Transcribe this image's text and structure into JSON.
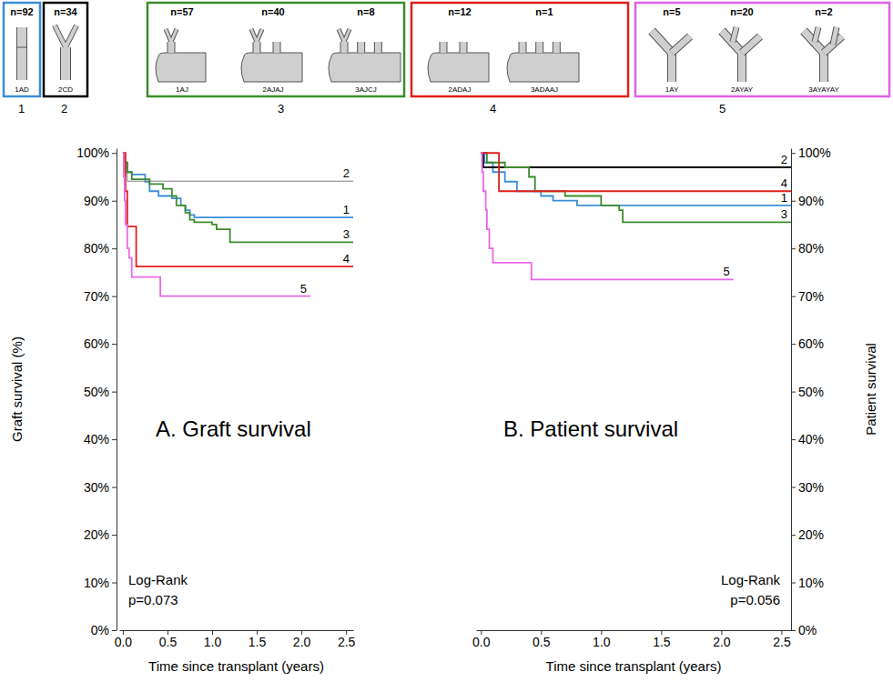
{
  "chart_data": [
    {
      "type": "line",
      "title": "A. Graft survival",
      "x_label": "Time since transplant (years)",
      "y_label": "Graft survival (%)",
      "line_style": "step",
      "xlim": [
        -0.04,
        2.58
      ],
      "ylim": [
        0,
        101
      ],
      "xticks": [
        {
          "value": 0,
          "label": "0.0"
        },
        0.5,
        {
          "value": 1,
          "label": "1.0"
        },
        1.5,
        {
          "value": 2,
          "label": "2.0"
        },
        2.5
      ],
      "yticks": [
        {
          "value": 0,
          "label": "0%"
        },
        {
          "value": 10,
          "label": "10%"
        },
        {
          "value": 20,
          "label": "20%"
        },
        {
          "value": 30,
          "label": "30%"
        },
        {
          "value": 40,
          "label": "40%"
        },
        {
          "value": 50,
          "label": "50%"
        },
        {
          "value": 60,
          "label": "60%"
        },
        {
          "value": 70,
          "label": "70%"
        },
        {
          "value": 80,
          "label": "80%"
        },
        {
          "value": 90,
          "label": "90%"
        },
        {
          "value": 100,
          "label": "100%"
        }
      ],
      "annotation": [
        "Log-Rank",
        "p=0.073"
      ],
      "series": [
        {
          "name": "1",
          "color": "#3b8ed8",
          "x": [
            0,
            0.02,
            0.05,
            0.1,
            0.25,
            0.3,
            0.4,
            0.55,
            0.65,
            0.7,
            0.75,
            0.8,
            2.6
          ],
          "values": [
            100,
            98,
            96,
            95.5,
            94,
            92,
            91,
            90.5,
            89,
            88,
            87,
            86.5,
            86.5
          ]
        },
        {
          "name": "2",
          "color": "#808080",
          "x": [
            0,
            0.02,
            0.05,
            2.6
          ],
          "values": [
            100,
            96,
            94.1,
            94.1
          ]
        },
        {
          "name": "3",
          "color": "#3c8c2c",
          "x": [
            0,
            0.02,
            0.05,
            0.1,
            0.3,
            0.45,
            0.55,
            0.6,
            0.7,
            0.75,
            0.8,
            1.0,
            1.05,
            1.2,
            2.6
          ],
          "values": [
            100,
            98,
            96,
            94.5,
            93.5,
            92.5,
            91,
            89,
            87.5,
            86,
            85.5,
            85,
            84,
            81.3,
            81.3
          ]
        },
        {
          "name": "4",
          "color": "#e0201c",
          "x": [
            0,
            0.03,
            0.05,
            0.15,
            2.6
          ],
          "values": [
            100,
            92,
            84.6,
            76.2,
            76.2
          ]
        },
        {
          "name": "5",
          "color": "#e868e8",
          "x": [
            0,
            0.01,
            0.02,
            0.03,
            0.05,
            0.07,
            0.1,
            0.42,
            2.1
          ],
          "values": [
            100,
            95,
            90,
            85,
            80,
            78,
            74,
            70,
            70
          ]
        }
      ]
    },
    {
      "type": "line",
      "title": "B. Patient survival",
      "x_label": "Time since transplant (years)",
      "y_label": "Patient survival",
      "line_style": "step",
      "xlim": [
        -0.04,
        2.58
      ],
      "ylim": [
        0,
        101
      ],
      "xticks": [
        {
          "value": 0,
          "label": "0.0"
        },
        0.5,
        {
          "value": 1,
          "label": "1.0"
        },
        1.5,
        {
          "value": 2,
          "label": "2.0"
        },
        2.5
      ],
      "yticks": [
        {
          "value": 0,
          "label": "0%"
        },
        {
          "value": 10,
          "label": "10%"
        },
        {
          "value": 20,
          "label": "20%"
        },
        {
          "value": 30,
          "label": "30%"
        },
        {
          "value": 40,
          "label": "40%"
        },
        {
          "value": 50,
          "label": "50%"
        },
        {
          "value": 60,
          "label": "60%"
        },
        {
          "value": 70,
          "label": "70%"
        },
        {
          "value": 80,
          "label": "80%"
        },
        {
          "value": 90,
          "label": "90%"
        },
        {
          "value": 100,
          "label": "100%"
        }
      ],
      "annotation": [
        "Log-Rank",
        "p=0.056"
      ],
      "series": [
        {
          "name": "1",
          "color": "#3b8ed8",
          "x": [
            0,
            0.03,
            0.1,
            0.2,
            0.3,
            0.5,
            0.6,
            0.8,
            2.6
          ],
          "values": [
            100,
            98,
            96,
            94,
            92,
            91,
            90,
            89,
            89
          ]
        },
        {
          "name": "2",
          "color": "#000000",
          "x": [
            0,
            0.02,
            2.6
          ],
          "values": [
            100,
            97,
            97
          ]
        },
        {
          "name": "3",
          "color": "#3c8c2c",
          "x": [
            0,
            0.05,
            0.2,
            0.4,
            0.45,
            0.7,
            1.0,
            1.15,
            1.18,
            2.6
          ],
          "values": [
            100,
            98,
            97,
            95,
            92,
            91,
            89,
            88,
            85.5,
            85.5
          ]
        },
        {
          "name": "4",
          "color": "#e0201c",
          "x": [
            0,
            0.1,
            0.15,
            2.6
          ],
          "values": [
            100,
            100,
            92,
            92
          ]
        },
        {
          "name": "5",
          "color": "#e868e8",
          "x": [
            0,
            0.01,
            0.02,
            0.04,
            0.05,
            0.07,
            0.1,
            0.42,
            2.1
          ],
          "values": [
            100,
            96,
            92,
            88,
            84,
            80,
            77,
            73.5,
            73.5
          ]
        }
      ]
    }
  ],
  "groups": [
    {
      "label": "1",
      "color": "#3b8ed8",
      "types": [
        {
          "n": "n=92",
          "code": "1AD"
        }
      ]
    },
    {
      "label": "2",
      "color": "#000000",
      "types": [
        {
          "n": "n=34",
          "code": "2CD"
        }
      ]
    },
    {
      "label": "3",
      "color": "#3c8c2c",
      "types": [
        {
          "n": "n=57",
          "code": "1AJ"
        },
        {
          "n": "n=40",
          "code": "2AJAJ"
        },
        {
          "n": "n=8",
          "code": "3AJCJ"
        }
      ]
    },
    {
      "label": "4",
      "color": "#e0201c",
      "types": [
        {
          "n": "n=12",
          "code": "2ADAJ"
        },
        {
          "n": "n=1",
          "code": "3ADAAJ"
        }
      ]
    },
    {
      "label": "5",
      "color": "#e060e8",
      "types": [
        {
          "n": "n=5",
          "code": "1AY"
        },
        {
          "n": "n=20",
          "code": "2AYAY"
        },
        {
          "n": "n=2",
          "code": "3AYAYAY"
        }
      ]
    }
  ]
}
